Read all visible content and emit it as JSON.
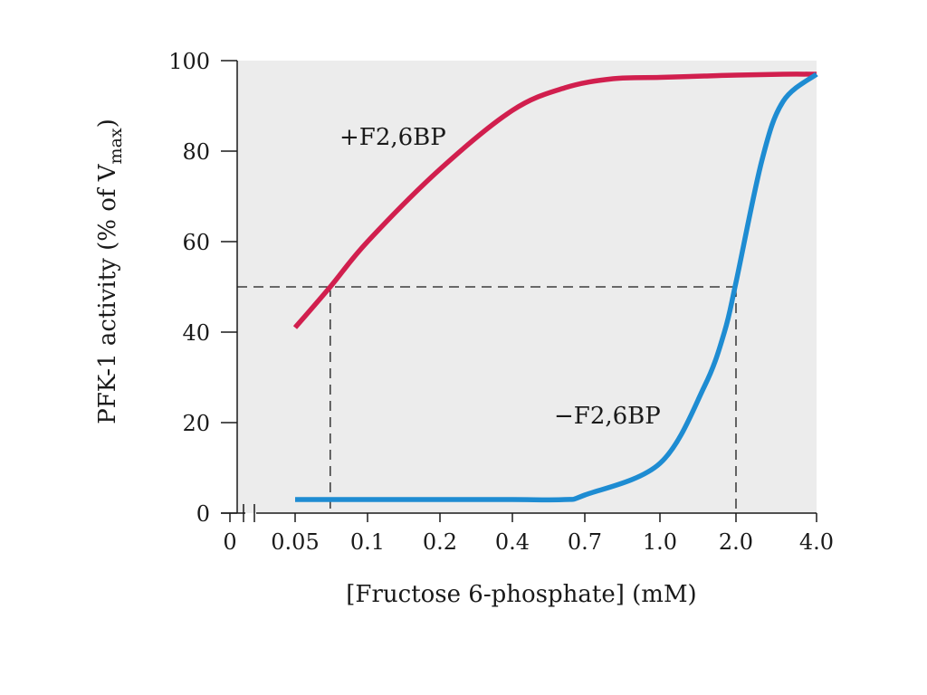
{
  "chart_data": {
    "type": "line",
    "xlabel": "[Fructose 6-phosphate] (mM)",
    "ylabel": "PFK-1 activity (% of V",
    "ylabel_sub": "max",
    "ylabel_close": ")",
    "ylim": [
      0,
      100
    ],
    "yticks": [
      0,
      20,
      40,
      60,
      80,
      100
    ],
    "xtick_labels": [
      "0",
      "0.05",
      "0.1",
      "0.2",
      "0.4",
      "0.7",
      "1.0",
      "2.0",
      "4.0"
    ],
    "x_axis_break": true,
    "plot_background": "#ececec",
    "series": [
      {
        "name": "+F2,6BP",
        "color": "#d11f4e",
        "x": [
          0.05,
          0.07,
          0.1,
          0.2,
          0.4,
          0.6,
          0.8,
          1.0,
          1.5,
          2.0,
          3.0,
          4.0
        ],
        "y": [
          41,
          50,
          60,
          76,
          89,
          94,
          96,
          96.3,
          96.6,
          96.8,
          97,
          97
        ]
      },
      {
        "name": "−F2,6BP",
        "color": "#1e8cd2",
        "x": [
          0.05,
          0.1,
          0.2,
          0.4,
          0.6,
          0.7,
          1.0,
          1.5,
          1.8,
          2.0,
          2.5,
          3.0,
          4.0
        ],
        "y": [
          3,
          3,
          3,
          3,
          3,
          4,
          11,
          28,
          40,
          51,
          78,
          91,
          97
        ]
      }
    ],
    "reference_lines": {
      "y": 50,
      "x_plus": 0.07,
      "x_minus": 2.0
    }
  }
}
